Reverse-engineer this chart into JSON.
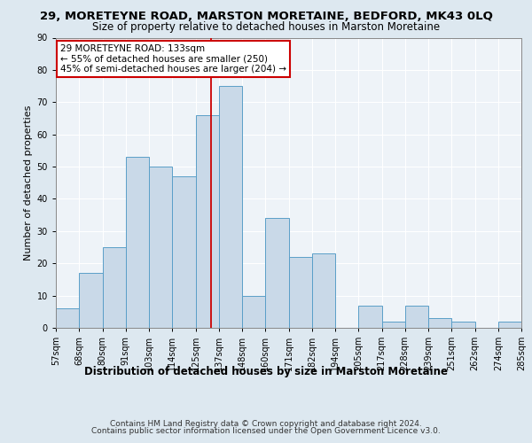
{
  "title": "29, MORETEYNE ROAD, MARSTON MORETAINE, BEDFORD, MK43 0LQ",
  "subtitle": "Size of property relative to detached houses in Marston Moretaine",
  "xlabel": "Distribution of detached houses by size in Marston Moretaine",
  "ylabel": "Number of detached properties",
  "footer_line1": "Contains HM Land Registry data © Crown copyright and database right 2024.",
  "footer_line2": "Contains public sector information licensed under the Open Government Licence v3.0.",
  "categories": [
    "57sqm",
    "68sqm",
    "80sqm",
    "91sqm",
    "103sqm",
    "114sqm",
    "125sqm",
    "137sqm",
    "148sqm",
    "160sqm",
    "171sqm",
    "182sqm",
    "194sqm",
    "205sqm",
    "217sqm",
    "228sqm",
    "239sqm",
    "251sqm",
    "262sqm",
    "274sqm",
    "285sqm"
  ],
  "values": [
    6,
    17,
    25,
    53,
    50,
    47,
    66,
    75,
    10,
    34,
    22,
    23,
    0,
    7,
    2,
    7,
    3,
    2,
    0,
    2
  ],
  "bar_color": "#c9d9e8",
  "bar_edge_color": "#5a9fc8",
  "annotation_box_text": "29 MORETEYNE ROAD: 133sqm\n← 55% of detached houses are smaller (250)\n45% of semi-detached houses are larger (204) →",
  "annotation_box_color": "#ffffff",
  "annotation_box_edge_color": "#cc0000",
  "vline_color": "#cc0000",
  "ylim": [
    0,
    90
  ],
  "yticks": [
    0,
    10,
    20,
    30,
    40,
    50,
    60,
    70,
    80,
    90
  ],
  "bg_color": "#dde8f0",
  "plot_bg_color": "#eef3f8",
  "grid_color": "#ffffff",
  "title_fontsize": 9.5,
  "subtitle_fontsize": 8.5,
  "xlabel_fontsize": 8.5,
  "ylabel_fontsize": 8,
  "tick_fontsize": 7,
  "annotation_fontsize": 7.5,
  "footer_fontsize": 6.5
}
